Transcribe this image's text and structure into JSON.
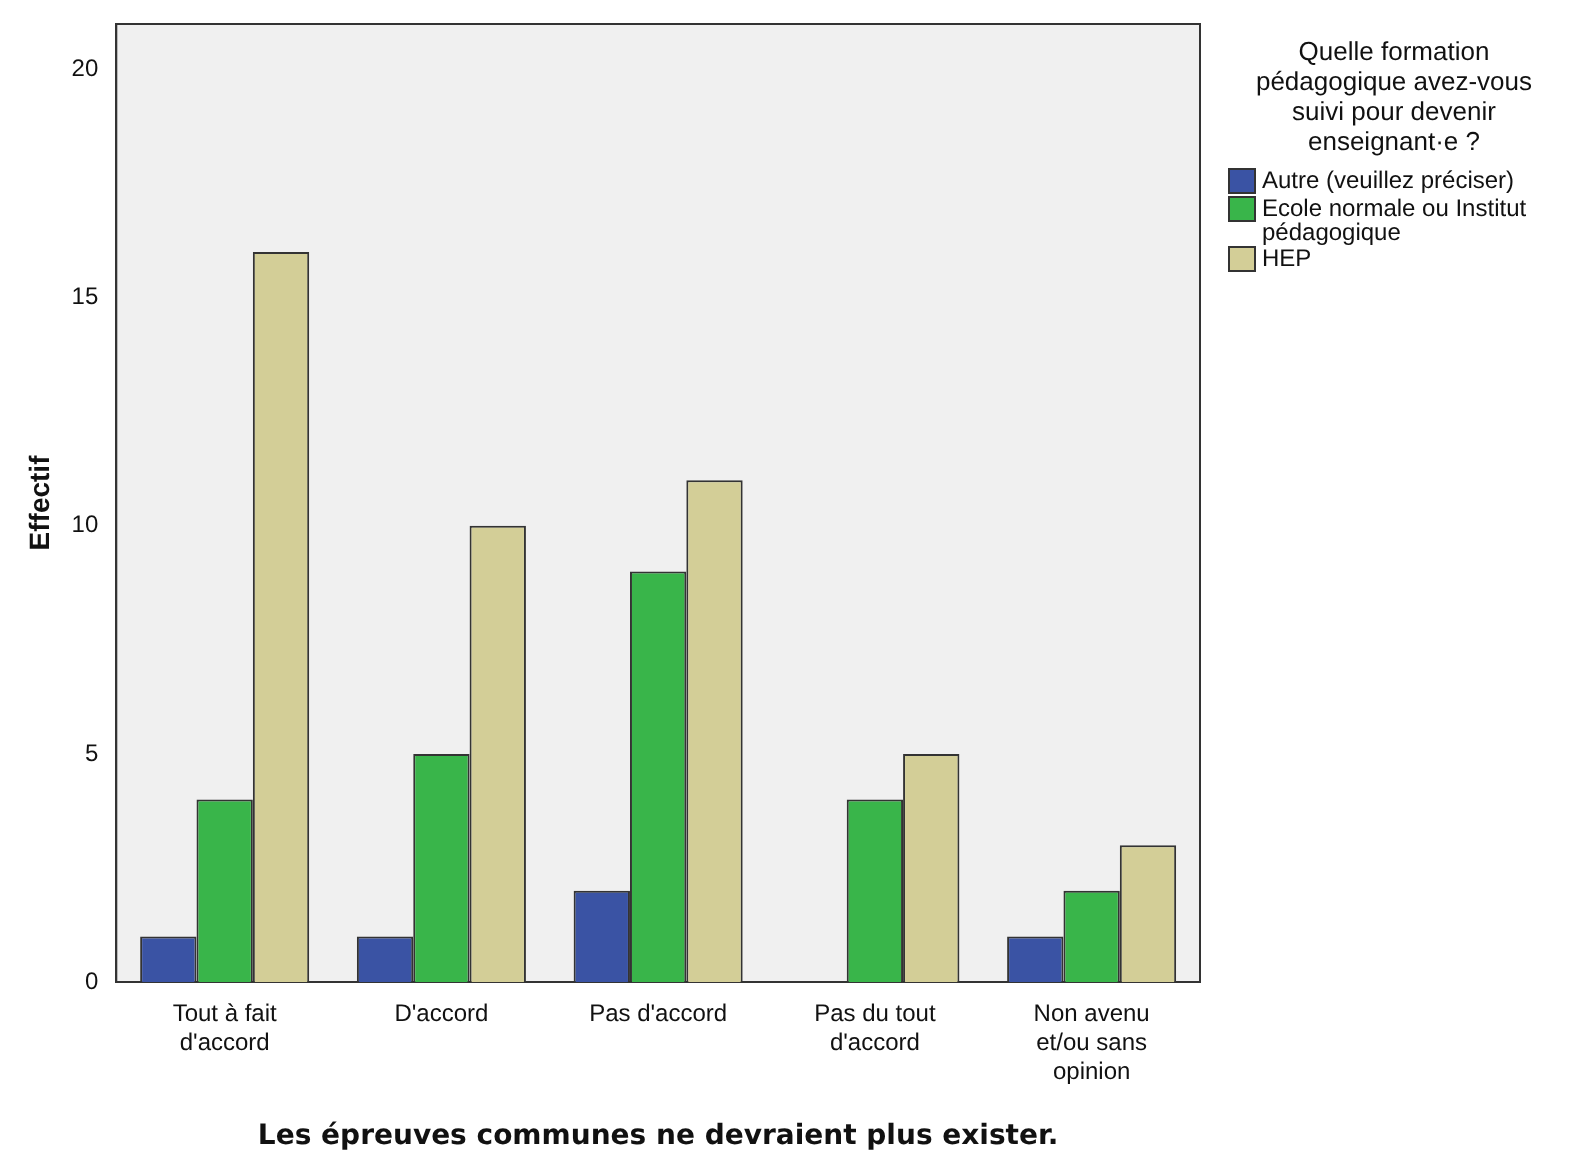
{
  "chart_data": {
    "type": "bar",
    "xlabel": "Les épreuves communes ne devraient plus exister.",
    "ylabel": "Effectif",
    "legend_title": "Quelle formation pédagogique avez-vous suivi pour devenir enseignant·e ?",
    "categories": [
      "Tout à fait d'accord",
      "D'accord",
      "Pas d'accord",
      "Pas du tout d'accord",
      "Non avenu et/ou sans opinion"
    ],
    "series": [
      {
        "name": "Autre (veuillez préciser)",
        "color": "#3a53a4",
        "values": [
          1,
          1,
          2,
          0,
          1
        ]
      },
      {
        "name": "Ecole normale ou Institut pédagogique",
        "color": "#39b54a",
        "values": [
          4,
          5,
          9,
          4,
          2
        ]
      },
      {
        "name": "HEP",
        "color": "#d3ce97",
        "values": [
          16,
          10,
          11,
          5,
          3
        ]
      }
    ],
    "ylim": [
      0,
      21
    ],
    "yticks": [
      0,
      5,
      10,
      15,
      20
    ],
    "grid": false,
    "legend": "right"
  }
}
